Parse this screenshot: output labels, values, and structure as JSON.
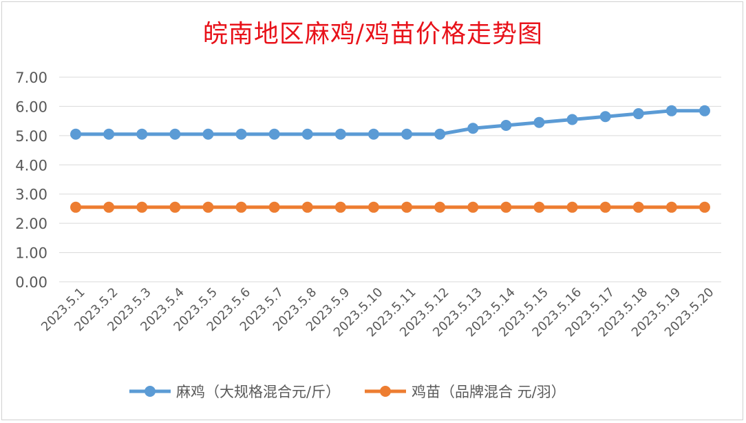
{
  "chart_data": {
    "type": "line",
    "title": "皖南地区麻鸡/鸡苗价格走势图",
    "xlabel": "",
    "ylabel": "",
    "ylim": [
      0,
      7
    ],
    "y_ticks": [
      "0.00",
      "1.00",
      "2.00",
      "3.00",
      "4.00",
      "5.00",
      "6.00",
      "7.00"
    ],
    "categories": [
      "2023.5.1",
      "2023.5.2",
      "2023.5.3",
      "2023.5.4",
      "2023.5.5",
      "2023.5.6",
      "2023.5.7",
      "2023.5.8",
      "2023.5.9",
      "2023.5.10",
      "2023.5.11",
      "2023.5.12",
      "2023.5.13",
      "2023.5.14",
      "2023.5.15",
      "2023.5.16",
      "2023.5.17",
      "2023.5.18",
      "2023.5.19",
      "2023.5.20"
    ],
    "series": [
      {
        "name": "麻鸡（大规格混合元/斤）",
        "color": "#5b9bd5",
        "values": [
          5.05,
          5.05,
          5.05,
          5.05,
          5.05,
          5.05,
          5.05,
          5.05,
          5.05,
          5.05,
          5.05,
          5.05,
          5.25,
          5.35,
          5.45,
          5.55,
          5.65,
          5.75,
          5.85,
          5.85
        ]
      },
      {
        "name": "鸡苗（品牌混合 元/羽）",
        "color": "#ed7d31",
        "values": [
          2.55,
          2.55,
          2.55,
          2.55,
          2.55,
          2.55,
          2.55,
          2.55,
          2.55,
          2.55,
          2.55,
          2.55,
          2.55,
          2.55,
          2.55,
          2.55,
          2.55,
          2.55,
          2.55,
          2.55
        ]
      }
    ],
    "grid": true,
    "legend": "bottom-center",
    "colors": {
      "title": "#e8121a",
      "grid": "#d9d9d9",
      "tick_text": "#595959"
    }
  }
}
